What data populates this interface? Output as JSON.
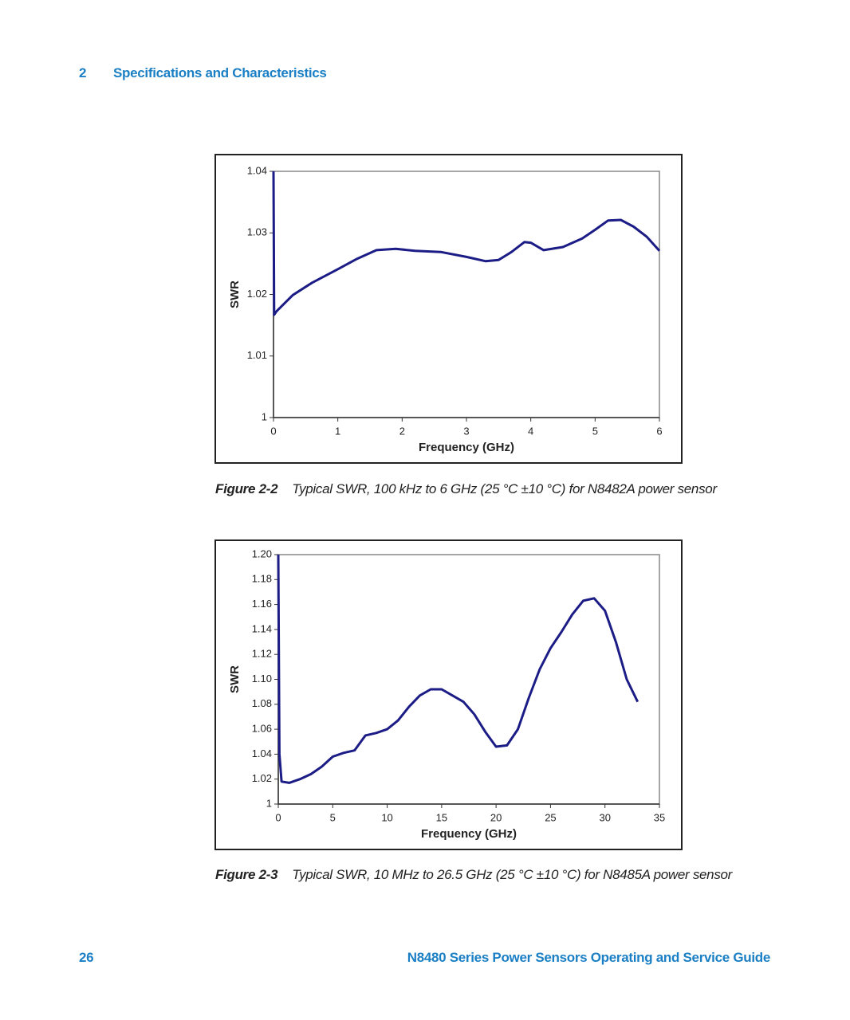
{
  "header": {
    "chapter": "2",
    "title": "Specifications and Characteristics"
  },
  "chart_data": [
    {
      "type": "line",
      "xlabel": "Frequency (GHz)",
      "ylabel": "SWR",
      "color": "#1c1c86",
      "grid": false,
      "x": [
        0,
        0.01,
        0.05,
        0.3,
        0.6,
        1.0,
        1.3,
        1.6,
        1.9,
        2.2,
        2.6,
        3.0,
        3.3,
        3.5,
        3.7,
        3.9,
        4.0,
        4.2,
        4.5,
        4.8,
        5.0,
        5.2,
        5.4,
        5.6,
        5.8,
        6.0
      ],
      "values": [
        1.04,
        1.0167,
        1.0173,
        1.0199,
        1.0219,
        1.0241,
        1.0258,
        1.0272,
        1.0274,
        1.0271,
        1.0269,
        1.0261,
        1.0254,
        1.0256,
        1.0269,
        1.0285,
        1.0284,
        1.0272,
        1.0277,
        1.0291,
        1.0305,
        1.032,
        1.0321,
        1.031,
        1.0294,
        1.0271
      ],
      "xlim": [
        0,
        6
      ],
      "xticks": [
        0,
        1,
        2,
        3,
        4,
        5,
        6
      ],
      "ylim": [
        1,
        1.04
      ],
      "yticks": [
        1,
        1.01,
        1.02,
        1.03,
        1.04
      ]
    },
    {
      "type": "line",
      "xlabel": "Frequency (GHz)",
      "ylabel": "SWR",
      "color": "#1c1c86",
      "grid": false,
      "x": [
        0,
        0.1,
        0.3,
        1,
        2,
        3,
        4,
        5,
        6,
        7,
        8,
        9,
        10,
        11,
        12,
        13,
        14,
        15,
        16,
        17,
        18,
        19,
        20,
        21,
        22,
        23,
        24,
        25,
        26,
        27,
        28,
        29,
        30,
        31,
        32,
        33
      ],
      "values": [
        1.2,
        1.04,
        1.018,
        1.017,
        1.02,
        1.024,
        1.03,
        1.038,
        1.041,
        1.043,
        1.055,
        1.057,
        1.06,
        1.067,
        1.078,
        1.087,
        1.092,
        1.092,
        1.087,
        1.082,
        1.072,
        1.058,
        1.046,
        1.047,
        1.06,
        1.085,
        1.108,
        1.125,
        1.138,
        1.152,
        1.163,
        1.165,
        1.155,
        1.13,
        1.1,
        1.082
      ],
      "xlim": [
        0,
        35
      ],
      "xticks": [
        0,
        5,
        10,
        15,
        20,
        25,
        30,
        35
      ],
      "ylim": [
        1,
        1.2
      ],
      "yticks": [
        1,
        1.02,
        1.04,
        1.06,
        1.08,
        {
          "value": 1.1,
          "label": "1.10"
        },
        1.12,
        1.14,
        1.16,
        1.18,
        {
          "value": 1.2,
          "label": "1.20"
        }
      ]
    }
  ],
  "captions": [
    {
      "label": "Figure 2-2",
      "text": "Typical SWR, 100 kHz to 6 GHz (25 °C ±10 °C) for N8482A power sensor"
    },
    {
      "label": "Figure 2-3",
      "text": "Typical SWR, 10 MHz to 26.5 GHz (25 °C ±10 °C) for N8485A power sensor"
    }
  ],
  "footer": {
    "page": "26",
    "title": "N8480 Series Power Sensors Operating and Service Guide"
  }
}
